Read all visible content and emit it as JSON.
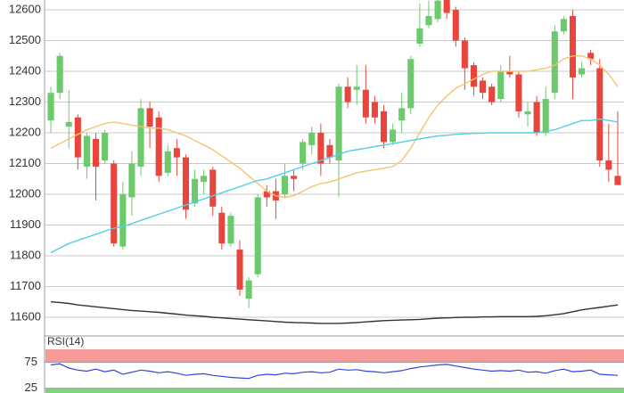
{
  "chart_data": [
    {
      "type": "candlestick",
      "up_color": "#6cc96c",
      "down_color": "#e8453c",
      "open": [
        12240,
        12330,
        12220,
        12250,
        12090,
        12180,
        12110,
        12100,
        11830,
        11990,
        12090,
        12280,
        12250,
        12070,
        12150,
        12120,
        11970,
        12040,
        12080,
        11940,
        11840,
        11820,
        11660,
        11740,
        12010,
        12010,
        12000,
        12060,
        12100,
        12160,
        12200,
        12160,
        12110,
        12350,
        12340,
        12340,
        12300,
        12270,
        12170,
        12240,
        12280,
        12490,
        12550,
        12570,
        12640,
        12600,
        12500,
        12420,
        12370,
        12350,
        12310,
        12400,
        12390,
        12260,
        12300,
        12200,
        12330,
        12530,
        12580,
        12390,
        12460,
        12410,
        12110,
        12060
      ],
      "high": [
        12350,
        12460,
        12340,
        12260,
        12200,
        12200,
        12210,
        12110,
        12040,
        12140,
        12310,
        12300,
        12270,
        12160,
        12180,
        12130,
        12080,
        12080,
        12090,
        11960,
        11940,
        11850,
        11730,
        12000,
        12030,
        12050,
        12100,
        12080,
        12180,
        12220,
        12230,
        12180,
        12360,
        12380,
        12420,
        12420,
        12320,
        12290,
        12230,
        12330,
        12450,
        12620,
        12630,
        12640,
        12640,
        12610,
        12510,
        12430,
        12380,
        12360,
        12420,
        12450,
        12400,
        12300,
        12320,
        12350,
        12550,
        12580,
        12600,
        12430,
        12470,
        12440,
        12230,
        12270
      ],
      "low": [
        12200,
        12310,
        12150,
        12080,
        12050,
        11980,
        12100,
        11830,
        11820,
        11930,
        12060,
        12150,
        12040,
        12060,
        12060,
        11920,
        11960,
        12000,
        11930,
        11820,
        11830,
        11670,
        11630,
        11730,
        11960,
        11920,
        11990,
        12010,
        12080,
        12130,
        12060,
        12100,
        11990,
        12280,
        12290,
        12230,
        12230,
        12150,
        12160,
        12200,
        12260,
        12480,
        12540,
        12560,
        12570,
        12480,
        12340,
        12320,
        12310,
        12290,
        12300,
        12380,
        12250,
        12220,
        12190,
        12190,
        12310,
        12520,
        12310,
        12380,
        12420,
        12090,
        12040,
        12030
      ],
      "close": [
        12330,
        12450,
        12235,
        12120,
        12190,
        12090,
        12200,
        11840,
        12000,
        12100,
        12280,
        12220,
        12060,
        12140,
        12120,
        11950,
        12050,
        12060,
        11960,
        11840,
        11930,
        11690,
        11720,
        11990,
        11990,
        11980,
        12060,
        12050,
        12170,
        12200,
        12100,
        12120,
        12350,
        12300,
        12350,
        12250,
        12250,
        12170,
        12210,
        12280,
        12440,
        12540,
        12580,
        12630,
        12590,
        12500,
        12410,
        12350,
        12330,
        12300,
        12400,
        12390,
        12270,
        12270,
        12200,
        12310,
        12530,
        12570,
        12380,
        12410,
        12440,
        12110,
        12080,
        12030
      ],
      "overlays": [
        {
          "color": "#f5c46e",
          "values": [
            12150,
            12165,
            12180,
            12195,
            12210,
            12220,
            12230,
            12235,
            12230,
            12225,
            12220,
            12215,
            12215,
            12210,
            12200,
            12190,
            12175,
            12160,
            12145,
            12125,
            12105,
            12085,
            12060,
            12035,
            12010,
            11995,
            11990,
            11995,
            12010,
            12025,
            12035,
            12040,
            12050,
            12060,
            12070,
            12075,
            12080,
            12085,
            12090,
            12110,
            12150,
            12200,
            12250,
            12290,
            12320,
            12345,
            12360,
            12375,
            12390,
            12400,
            12400,
            12400,
            12400,
            12400,
            12405,
            12410,
            12420,
            12440,
            12450,
            12450,
            12440,
            12420,
            12390,
            12350
          ]
        },
        {
          "color": "#4fd0e6",
          "values": [
            11810,
            11825,
            11840,
            11850,
            11860,
            11870,
            11880,
            11890,
            11895,
            11905,
            11915,
            11925,
            11935,
            11945,
            11955,
            11965,
            11975,
            11985,
            11995,
            12005,
            12015,
            12025,
            12035,
            12045,
            12050,
            12060,
            12070,
            12080,
            12090,
            12100,
            12110,
            12120,
            12130,
            12140,
            12145,
            12150,
            12155,
            12160,
            12165,
            12170,
            12175,
            12180,
            12185,
            12190,
            12192,
            12195,
            12197,
            12198,
            12199,
            12200,
            12200,
            12200,
            12200,
            12200,
            12200,
            12205,
            12210,
            12220,
            12230,
            12240,
            12240,
            12245,
            12240,
            12235
          ]
        },
        {
          "color": "#333333",
          "values": [
            11650,
            11648,
            11645,
            11640,
            11637,
            11634,
            11631,
            11628,
            11625,
            11622,
            11620,
            11618,
            11616,
            11613,
            11610,
            11607,
            11605,
            11603,
            11600,
            11598,
            11596,
            11594,
            11592,
            11590,
            11588,
            11586,
            11584,
            11583,
            11582,
            11581,
            11580,
            11580,
            11580,
            11581,
            11583,
            11585,
            11587,
            11589,
            11590,
            11591,
            11592,
            11593,
            11595,
            11597,
            11598,
            11599,
            11600,
            11600,
            11601,
            11601,
            11602,
            11602,
            11602,
            11602,
            11603,
            11605,
            11608,
            11612,
            11618,
            11624,
            11628,
            11632,
            11636,
            11640
          ]
        }
      ],
      "ylim": [
        11542,
        12632
      ],
      "yticks": [
        11600,
        11700,
        11800,
        11900,
        12000,
        12100,
        12200,
        12300,
        12400,
        12500,
        12600
      ],
      "grid": true
    },
    {
      "type": "line",
      "title": "RSI(14)",
      "color": "#3344dd",
      "values": [
        70,
        72,
        64,
        60,
        58,
        62,
        57,
        60,
        52,
        56,
        60,
        58,
        55,
        57,
        54,
        50,
        52,
        53,
        50,
        48,
        46,
        45,
        44,
        50,
        52,
        51,
        54,
        53,
        56,
        57,
        55,
        56,
        62,
        60,
        61,
        58,
        57,
        55,
        57,
        59,
        63,
        66,
        68,
        70,
        71,
        68,
        65,
        62,
        60,
        58,
        59,
        58,
        60,
        56,
        57,
        54,
        59,
        62,
        57,
        58,
        60,
        52,
        51,
        50
      ],
      "ylim": [
        16,
        100
      ],
      "yticks": [
        25,
        75
      ],
      "zone_colors": [
        "#7ed47e",
        "#f59a96"
      ]
    }
  ]
}
